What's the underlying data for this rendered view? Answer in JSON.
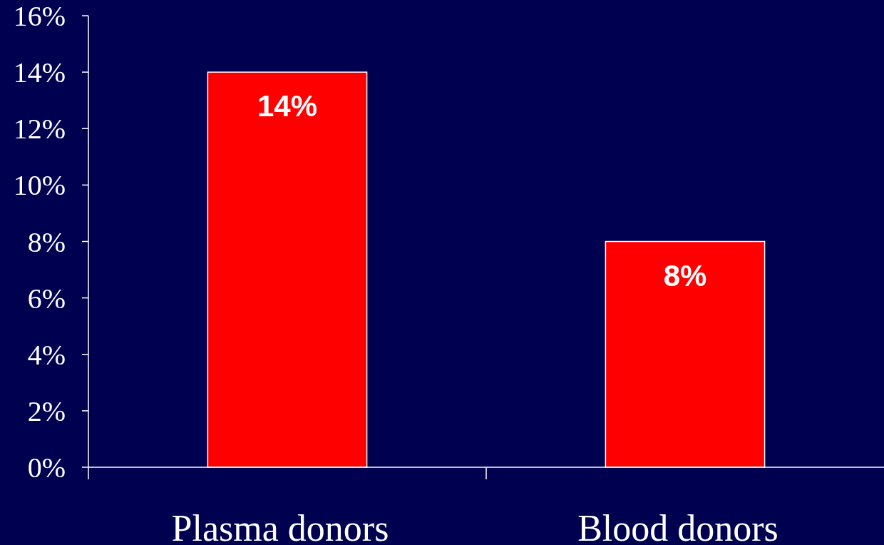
{
  "chart_data": {
    "type": "bar",
    "categories": [
      "Plasma donors",
      "Blood donors"
    ],
    "values": [
      14,
      8
    ],
    "color": "#ff0000",
    "value_labels": [
      "14%",
      "8%"
    ],
    "ylim": [
      0,
      16
    ],
    "yticks": [
      {
        "value": 0,
        "label": "0%"
      },
      {
        "value": 2,
        "label": "2%"
      },
      {
        "value": 4,
        "label": "4%"
      },
      {
        "value": 6,
        "label": "6%"
      },
      {
        "value": 8,
        "label": "8%"
      },
      {
        "value": 10,
        "label": "10%"
      },
      {
        "value": 12,
        "label": "12%"
      },
      {
        "value": 14,
        "label": "14%"
      },
      {
        "value": 16,
        "label": "16%"
      }
    ],
    "grid": false
  }
}
